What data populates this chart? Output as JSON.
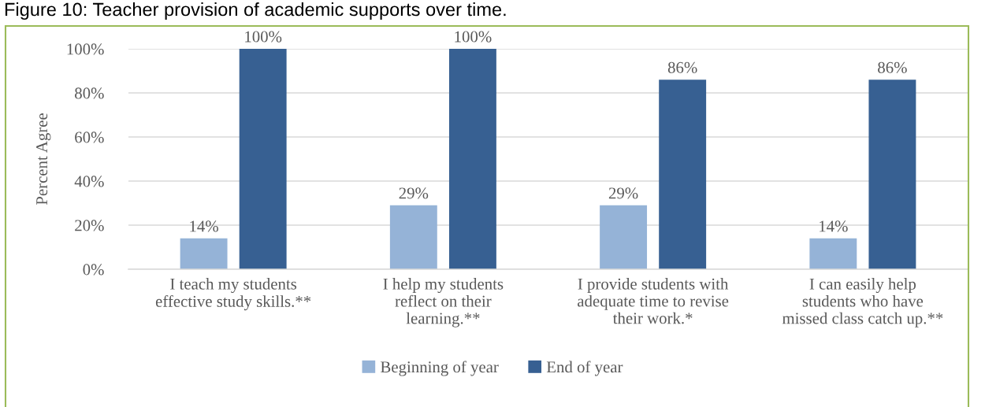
{
  "chart_data": {
    "type": "bar",
    "title": "Figure 10: Teacher provision of academic supports over time.",
    "ylabel": "Percent Agree",
    "categories": [
      "I teach my students\neffective study skills.**",
      "I help my students\nreflect on their\nlearning.**",
      "I provide students with\nadequate time to revise\ntheir work.*",
      "I can easily help\nstudents who have\nmissed class catch up.**"
    ],
    "series": [
      {
        "name": "Beginning of year",
        "color": "#95b3d7",
        "values": [
          14,
          29,
          29,
          14
        ],
        "value_labels": [
          "14%",
          "29%",
          "29%",
          "14%"
        ]
      },
      {
        "name": "End of year",
        "color": "#376092",
        "values": [
          100,
          100,
          86,
          86
        ],
        "value_labels": [
          "100%",
          "100%",
          "86%",
          "86%"
        ]
      }
    ],
    "ylim": [
      0,
      100
    ],
    "yticks": [
      {
        "value": 0,
        "label": "0%"
      },
      {
        "value": 20,
        "label": "20%"
      },
      {
        "value": 40,
        "label": "40%"
      },
      {
        "value": 60,
        "label": "60%"
      },
      {
        "value": 80,
        "label": "80%"
      },
      {
        "value": 100,
        "label": "100%"
      }
    ],
    "grid": "y",
    "legend": "bottom"
  }
}
